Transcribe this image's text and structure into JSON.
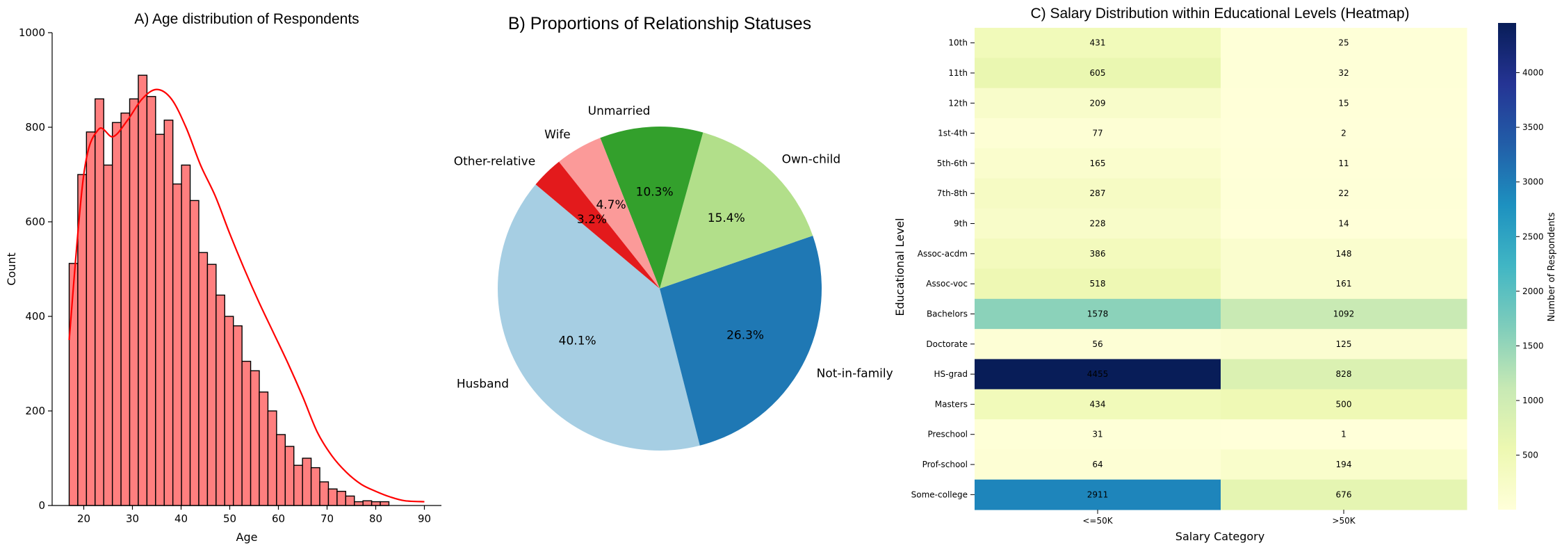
{
  "chart_data": [
    {
      "type": "bar",
      "title": "A) Age distribution of Respondents",
      "xlabel": "Age",
      "ylabel": "Count",
      "xlim": [
        13.5,
        93.5
      ],
      "ylim": [
        0,
        1000
      ],
      "xticks": [
        20,
        30,
        40,
        50,
        60,
        70,
        80,
        90
      ],
      "yticks": [
        0,
        200,
        400,
        600,
        800,
        1000
      ],
      "bar_color": "#ff7f7f",
      "kde_color": "#ff0000",
      "bins": {
        "start": 17,
        "width": 1.776,
        "counts": [
          512,
          700,
          790,
          860,
          720,
          810,
          830,
          860,
          910,
          865,
          785,
          815,
          680,
          720,
          645,
          535,
          510,
          445,
          400,
          380,
          305,
          285,
          240,
          200,
          150,
          125,
          85,
          100,
          80,
          50,
          35,
          30,
          20,
          8,
          10,
          8,
          8
        ]
      },
      "kde": {
        "x": [
          17,
          20,
          23,
          26,
          29,
          32,
          35,
          38,
          41,
          44,
          47,
          50,
          53,
          56,
          59,
          62,
          65,
          68,
          71,
          74,
          77,
          80,
          83,
          86,
          90
        ],
        "y": [
          350,
          700,
          795,
          780,
          815,
          860,
          880,
          860,
          800,
          720,
          655,
          575,
          500,
          430,
          365,
          300,
          230,
          155,
          105,
          70,
          45,
          30,
          18,
          10,
          8
        ]
      }
    },
    {
      "type": "pie",
      "title": "B) Proportions of Relationship Statuses",
      "slices": [
        {
          "label": "Husband",
          "value": 40.1,
          "pct": "40.1%",
          "color": "#a6cee3"
        },
        {
          "label": "Not-in-family",
          "value": 26.3,
          "pct": "26.3%",
          "color": "#1f78b4"
        },
        {
          "label": "Own-child",
          "value": 15.4,
          "pct": "15.4%",
          "color": "#b2df8a"
        },
        {
          "label": "Unmarried",
          "value": 10.3,
          "pct": "10.3%",
          "color": "#33a02c"
        },
        {
          "label": "Wife",
          "value": 4.7,
          "pct": "4.7%",
          "color": "#fb9a99"
        },
        {
          "label": "Other-relative",
          "value": 3.2,
          "pct": "3.2%",
          "color": "#e31a1c"
        }
      ]
    },
    {
      "type": "heatmap",
      "title": "C) Salary Distribution within Educational Levels (Heatmap)",
      "xlabel": "Salary Category",
      "ylabel": "Educational Level",
      "colorbar_label": "Number of Respondents",
      "colorbar_ticks": [
        500,
        1000,
        1500,
        2000,
        2500,
        3000,
        3500,
        4000
      ],
      "columns": [
        "<=50K",
        ">50K"
      ],
      "rows": [
        "10th",
        "11th",
        "12th",
        "1st-4th",
        "5th-6th",
        "7th-8th",
        "9th",
        "Assoc-acdm",
        "Assoc-voc",
        "Bachelors",
        "Doctorate",
        "HS-grad",
        "Masters",
        "Preschool",
        "Prof-school",
        "Some-college"
      ],
      "values": [
        [
          431,
          25
        ],
        [
          605,
          32
        ],
        [
          209,
          15
        ],
        [
          77,
          2
        ],
        [
          165,
          11
        ],
        [
          287,
          22
        ],
        [
          228,
          14
        ],
        [
          386,
          148
        ],
        [
          518,
          161
        ],
        [
          1578,
          1092
        ],
        [
          56,
          125
        ],
        [
          4455,
          828
        ],
        [
          434,
          500
        ],
        [
          31,
          1
        ],
        [
          64,
          194
        ],
        [
          2911,
          676
        ]
      ],
      "vmin": 1,
      "vmax": 4455,
      "colormap": "YlGnBu"
    }
  ]
}
